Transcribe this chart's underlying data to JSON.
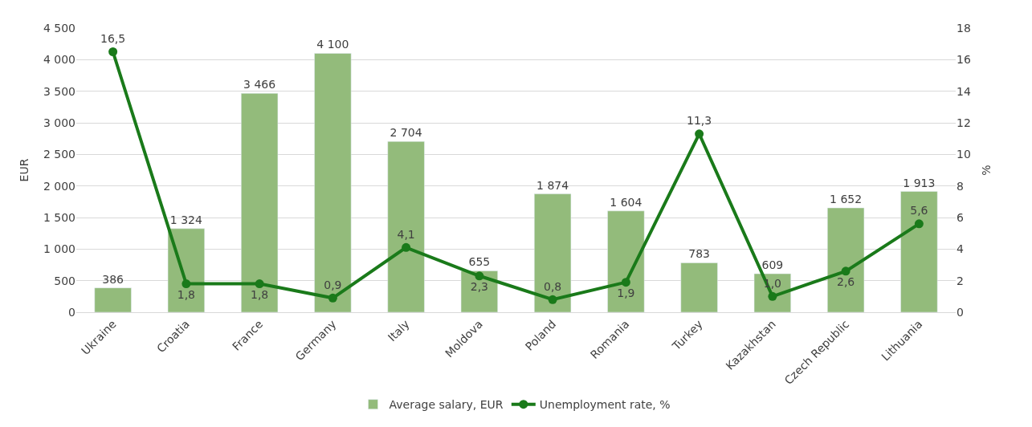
{
  "chart_data": {
    "type": "bar",
    "ylabel": "EUR",
    "y2label": "%",
    "categories": [
      "Ukraine",
      "Croatia",
      "France",
      "Germany",
      "Italy",
      "Moldova",
      "Poland",
      "Romania",
      "Turkey",
      "Kazakhstan",
      "Czech Republic",
      "Lithuania"
    ],
    "series": [
      {
        "name": "Average salary, EUR",
        "color": "#93bb7b",
        "values": [
          386,
          1324,
          3466,
          4100,
          2704,
          655,
          1874,
          1604,
          783,
          609,
          1652,
          1913
        ],
        "value_labels": [
          "386",
          "1 324",
          "3 466",
          "4 100",
          "2 704",
          "655",
          "1 874",
          "1 604",
          "783",
          "609",
          "1 652",
          "1 913"
        ]
      },
      {
        "name": "Unemployment rate, %",
        "type": "line",
        "axis": "y2",
        "color": "#1a7a1a",
        "marker": "circle",
        "values": [
          16.5,
          1.8,
          1.8,
          0.9,
          4.1,
          2.3,
          0.8,
          1.9,
          11.3,
          1.0,
          2.6,
          5.6
        ],
        "value_labels": [
          "16,5",
          "1,8",
          "1,8",
          "0,9",
          "4,1",
          "2,3",
          "0,8",
          "1,9",
          "11,3",
          "1,0",
          "2,6",
          "5,6"
        ]
      }
    ],
    "ylim": [
      0,
      4500
    ],
    "yticks": [
      0,
      500,
      {
        "value": 1000,
        "label": "1 000"
      },
      {
        "value": 1500,
        "label": "1 500"
      },
      {
        "value": 2000,
        "label": "2 000"
      },
      {
        "value": 2500,
        "label": "2 500"
      },
      {
        "value": 3000,
        "label": "3 000"
      },
      {
        "value": 3500,
        "label": "3 500"
      },
      {
        "value": 4000,
        "label": "4 000"
      },
      {
        "value": 4500,
        "label": "4 500"
      }
    ],
    "y2lim": [
      0,
      18
    ],
    "y2ticks": [
      0,
      2,
      4,
      6,
      8,
      10,
      12,
      14,
      16,
      18
    ],
    "grid": "y",
    "legend": "bottom"
  }
}
